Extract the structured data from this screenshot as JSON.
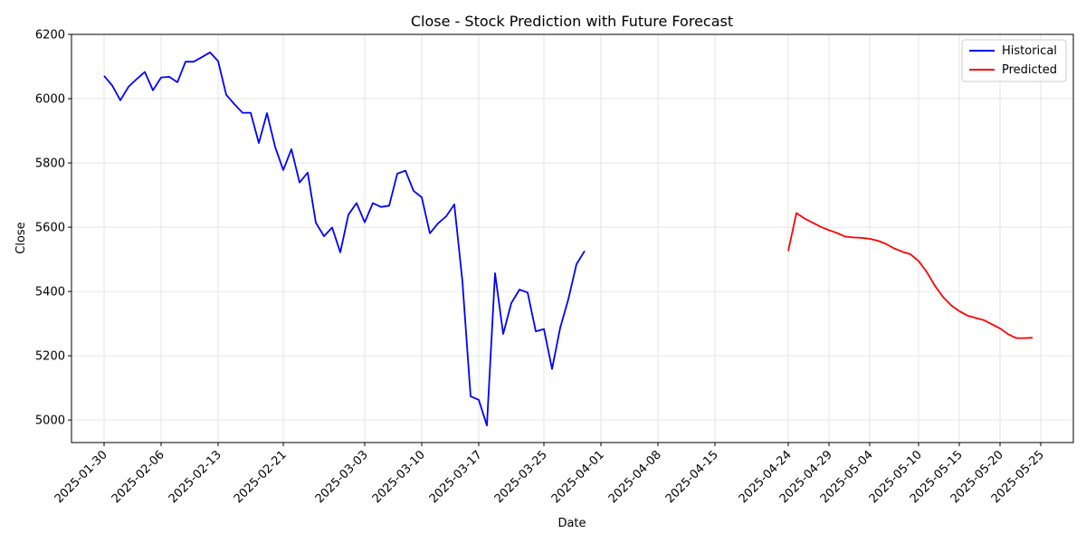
{
  "chart_data": {
    "type": "line",
    "title": "Close - Stock Prediction with Future Forecast",
    "xlabel": "Date",
    "ylabel": "Close",
    "ylim": [
      4930,
      6200
    ],
    "yticks": [
      5000,
      5200,
      5400,
      5600,
      5800,
      6000,
      6200
    ],
    "xlim": [
      "2025-01-26",
      "2025-05-29"
    ],
    "xticks": [
      "2025-01-30",
      "2025-02-06",
      "2025-02-13",
      "2025-02-21",
      "2025-03-03",
      "2025-03-10",
      "2025-03-17",
      "2025-03-25",
      "2025-04-01",
      "2025-04-08",
      "2025-04-15",
      "2025-04-24",
      "2025-04-29",
      "2025-05-04",
      "2025-05-10",
      "2025-05-15",
      "2025-05-20",
      "2025-05-25"
    ],
    "grid": true,
    "legend": "top-right",
    "series": [
      {
        "name": "Historical",
        "color": "#0000ff",
        "points": [
          [
            "2025-01-30",
            6071
          ],
          [
            "2025-01-31",
            6041
          ],
          [
            "2025-02-01",
            5995
          ],
          [
            "2025-02-02",
            6037
          ],
          [
            "2025-02-03",
            6061
          ],
          [
            "2025-02-04",
            6083
          ],
          [
            "2025-02-05",
            6026
          ],
          [
            "2025-02-06",
            6066
          ],
          [
            "2025-02-07",
            6068
          ],
          [
            "2025-02-08",
            6051
          ],
          [
            "2025-02-09",
            6115
          ],
          [
            "2025-02-10",
            6115
          ],
          [
            "2025-02-11",
            6129
          ],
          [
            "2025-02-12",
            6144
          ],
          [
            "2025-02-13",
            6117
          ],
          [
            "2025-02-14",
            6012
          ],
          [
            "2025-02-15",
            5983
          ],
          [
            "2025-02-16",
            5956
          ],
          [
            "2025-02-17",
            5956
          ],
          [
            "2025-02-18",
            5862
          ],
          [
            "2025-02-19",
            5955
          ],
          [
            "2025-02-20",
            5850
          ],
          [
            "2025-02-21",
            5778
          ],
          [
            "2025-02-22",
            5843
          ],
          [
            "2025-02-23",
            5739
          ],
          [
            "2025-02-24",
            5770
          ],
          [
            "2025-02-25",
            5614
          ],
          [
            "2025-02-26",
            5572
          ],
          [
            "2025-02-27",
            5599
          ],
          [
            "2025-02-28",
            5522
          ],
          [
            "2025-03-01",
            5639
          ],
          [
            "2025-03-02",
            5675
          ],
          [
            "2025-03-03",
            5615
          ],
          [
            "2025-03-04",
            5675
          ],
          [
            "2025-03-05",
            5663
          ],
          [
            "2025-03-06",
            5667
          ],
          [
            "2025-03-07",
            5767
          ],
          [
            "2025-03-08",
            5776
          ],
          [
            "2025-03-09",
            5713
          ],
          [
            "2025-03-10",
            5693
          ],
          [
            "2025-03-11",
            5581
          ],
          [
            "2025-03-12",
            5612
          ],
          [
            "2025-03-13",
            5634
          ],
          [
            "2025-03-14",
            5671
          ],
          [
            "2025-03-15",
            5430
          ],
          [
            "2025-03-16",
            5074
          ],
          [
            "2025-03-17",
            5063
          ],
          [
            "2025-03-18",
            4983
          ],
          [
            "2025-03-19",
            5457
          ],
          [
            "2025-03-20",
            5268
          ],
          [
            "2025-03-21",
            5364
          ],
          [
            "2025-03-22",
            5406
          ],
          [
            "2025-03-23",
            5397
          ],
          [
            "2025-03-24",
            5276
          ],
          [
            "2025-03-25",
            5283
          ],
          [
            "2025-03-26",
            5159
          ],
          [
            "2025-03-27",
            5287
          ],
          [
            "2025-03-28",
            5376
          ],
          [
            "2025-03-29",
            5485
          ],
          [
            "2025-03-30",
            5526
          ]
        ]
      },
      {
        "name": "Predicted",
        "color": "#ff0000",
        "points": [
          [
            "2025-04-24",
            5526
          ],
          [
            "2025-04-25",
            5644
          ],
          [
            "2025-04-26",
            5627
          ],
          [
            "2025-04-27",
            5614
          ],
          [
            "2025-04-28",
            5601
          ],
          [
            "2025-04-29",
            5591
          ],
          [
            "2025-04-30",
            5582
          ],
          [
            "2025-05-01",
            5571
          ],
          [
            "2025-05-02",
            5568
          ],
          [
            "2025-05-03",
            5567
          ],
          [
            "2025-05-04",
            5564
          ],
          [
            "2025-05-05",
            5558
          ],
          [
            "2025-05-06",
            5548
          ],
          [
            "2025-05-07",
            5534
          ],
          [
            "2025-05-08",
            5524
          ],
          [
            "2025-05-09",
            5516
          ],
          [
            "2025-05-10",
            5495
          ],
          [
            "2025-05-11",
            5461
          ],
          [
            "2025-05-12",
            5418
          ],
          [
            "2025-05-13",
            5383
          ],
          [
            "2025-05-14",
            5357
          ],
          [
            "2025-05-15",
            5339
          ],
          [
            "2025-05-16",
            5325
          ],
          [
            "2025-05-17",
            5318
          ],
          [
            "2025-05-18",
            5311
          ],
          [
            "2025-05-19",
            5298
          ],
          [
            "2025-05-20",
            5285
          ],
          [
            "2025-05-21",
            5267
          ],
          [
            "2025-05-22",
            5255
          ],
          [
            "2025-05-23",
            5255
          ],
          [
            "2025-05-24",
            5256
          ]
        ]
      }
    ]
  }
}
